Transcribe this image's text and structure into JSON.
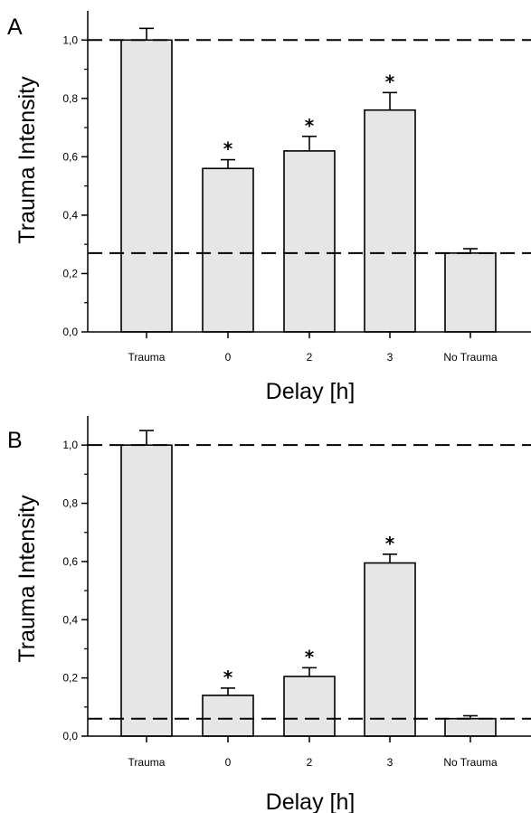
{
  "chart_data": [
    {
      "type": "bar",
      "panel_label": "A",
      "categories": [
        "Trauma",
        "0",
        "2",
        "3",
        "No Trauma"
      ],
      "values": [
        1.0,
        0.56,
        0.62,
        0.76,
        0.27
      ],
      "errors": [
        0.04,
        0.03,
        0.05,
        0.06,
        0.015
      ],
      "significance": [
        "",
        "*",
        "*",
        "*",
        ""
      ],
      "reference_lines": [
        1.0,
        0.27
      ],
      "xlabel": "Delay [h]",
      "ylabel": "Trauma Intensity",
      "ylim": [
        0,
        1.1
      ],
      "yticks": [
        "0,0",
        "0,2",
        "0,4",
        "0,6",
        "0,8",
        "1,0"
      ],
      "bar_color": "#e6e6e6",
      "grid": false
    },
    {
      "type": "bar",
      "panel_label": "B",
      "categories": [
        "Trauma",
        "0",
        "2",
        "3",
        "No Trauma"
      ],
      "values": [
        1.0,
        0.14,
        0.205,
        0.595,
        0.06
      ],
      "errors": [
        0.05,
        0.025,
        0.03,
        0.03,
        0.01
      ],
      "significance": [
        "",
        "*",
        "*",
        "*",
        ""
      ],
      "reference_lines": [
        1.0,
        0.06
      ],
      "xlabel": "Delay [h]",
      "ylabel": "Trauma Intensity",
      "ylim": [
        0,
        1.1
      ],
      "yticks": [
        "0,0",
        "0,2",
        "0,4",
        "0,6",
        "0,8",
        "1,0"
      ],
      "bar_color": "#e6e6e6",
      "grid": false
    }
  ]
}
